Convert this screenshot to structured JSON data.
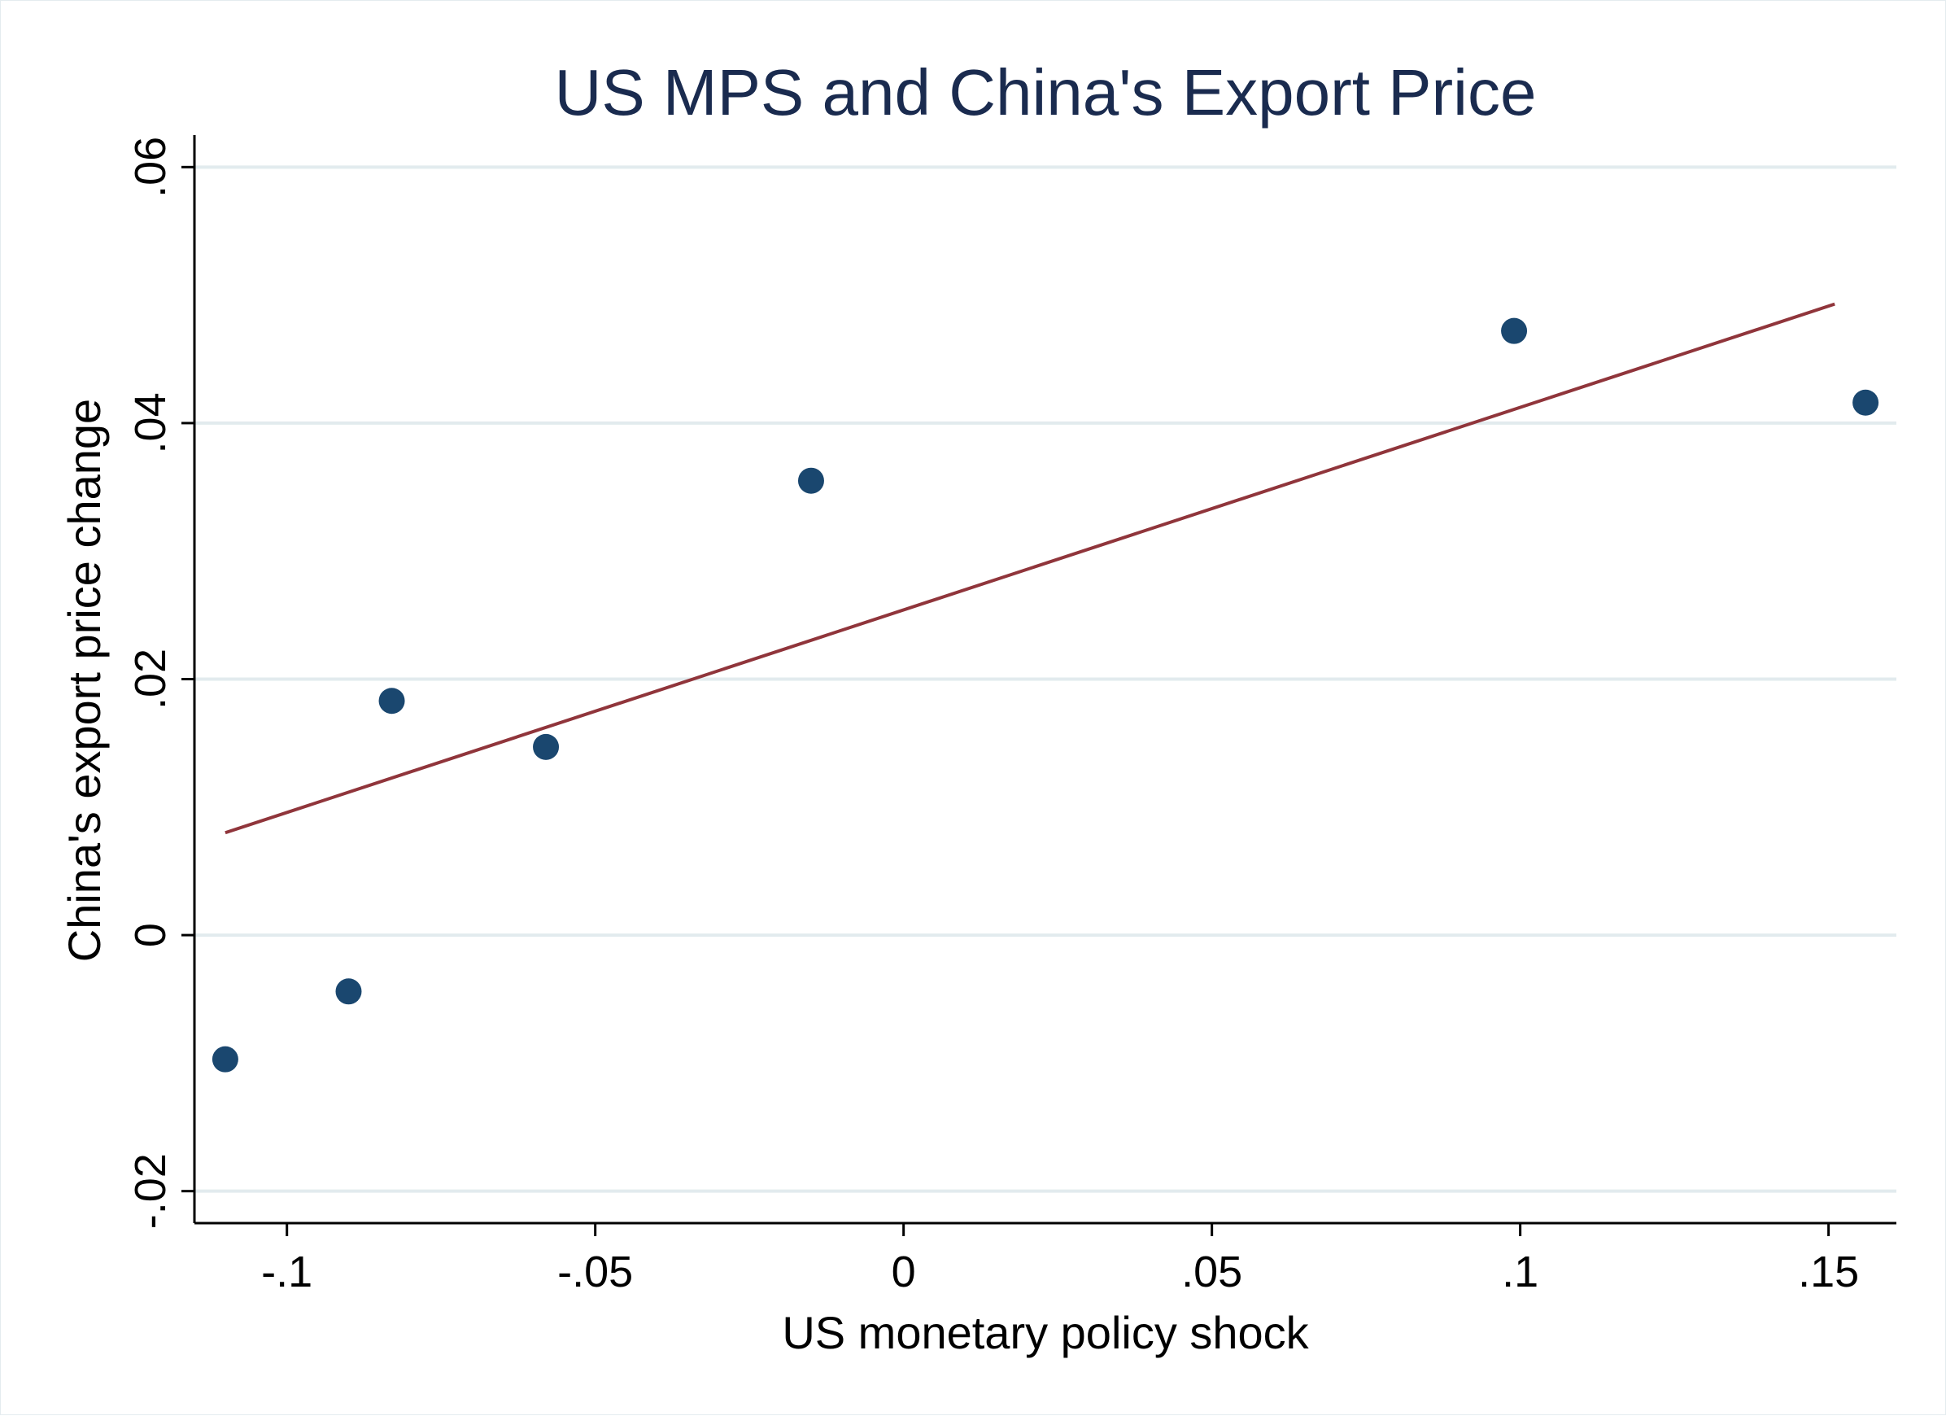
{
  "chart_data": {
    "type": "scatter",
    "title": "US MPS and China's Export Price",
    "xlabel": "US monetary policy shock",
    "ylabel": "China's export price change",
    "xlim": [
      -0.115,
      0.161
    ],
    "ylim": [
      -0.0225,
      0.0625
    ],
    "x_ticks": [
      -0.1,
      -0.05,
      0,
      0.05,
      0.1,
      0.15
    ],
    "x_tick_labels": [
      "-.1",
      "-.05",
      "0",
      ".05",
      ".1",
      ".15"
    ],
    "y_ticks": [
      -0.02,
      0,
      0.02,
      0.04,
      0.06
    ],
    "y_tick_labels": [
      "-.02",
      "0",
      ".02",
      ".04",
      ".06"
    ],
    "grid": "horizontal",
    "series": [
      {
        "type": "scatter",
        "color": "#1a476f",
        "points": [
          {
            "x": -0.11,
            "y": -0.0097
          },
          {
            "x": -0.09,
            "y": -0.0044
          },
          {
            "x": -0.083,
            "y": 0.0183
          },
          {
            "x": -0.058,
            "y": 0.0147
          },
          {
            "x": -0.015,
            "y": 0.0355
          },
          {
            "x": 0.099,
            "y": 0.0472
          },
          {
            "x": 0.156,
            "y": 0.0416
          }
        ]
      },
      {
        "type": "line",
        "color": "#90353b",
        "points": [
          {
            "x": -0.11,
            "y": 0.008
          },
          {
            "x": 0.151,
            "y": 0.0493
          }
        ]
      }
    ]
  }
}
